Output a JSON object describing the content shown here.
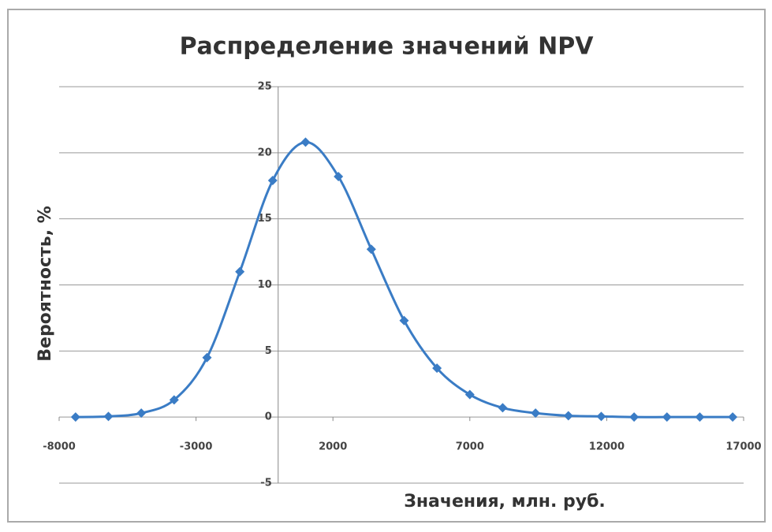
{
  "chart_data": {
    "type": "scatter",
    "title": "Распределение значений NPV",
    "xlabel": "Значения, млн. руб.",
    "ylabel": "Вероятность, %",
    "x": [
      -7400,
      -6200,
      -5000,
      -3800,
      -2600,
      -1400,
      -200,
      1000,
      2200,
      3400,
      4600,
      5800,
      7000,
      8200,
      9400,
      10600,
      11800,
      13000,
      14200,
      15400,
      16600
    ],
    "series": [
      {
        "name": "NPV",
        "color": "#3a7cc5",
        "values": [
          0,
          0.05,
          0.3,
          1.3,
          4.5,
          11,
          17.9,
          20.8,
          18.2,
          12.7,
          7.3,
          3.7,
          1.7,
          0.7,
          0.3,
          0.1,
          0.05,
          0,
          0,
          0,
          0
        ]
      }
    ],
    "xlim": [
      -8000,
      17000
    ],
    "xticks": [
      -8000,
      -3000,
      2000,
      7000,
      12000,
      17000
    ],
    "ylim": [
      -5,
      25
    ],
    "yticks": [
      -5,
      0,
      5,
      10,
      15,
      20,
      25
    ],
    "grid": true,
    "smooth": true
  }
}
